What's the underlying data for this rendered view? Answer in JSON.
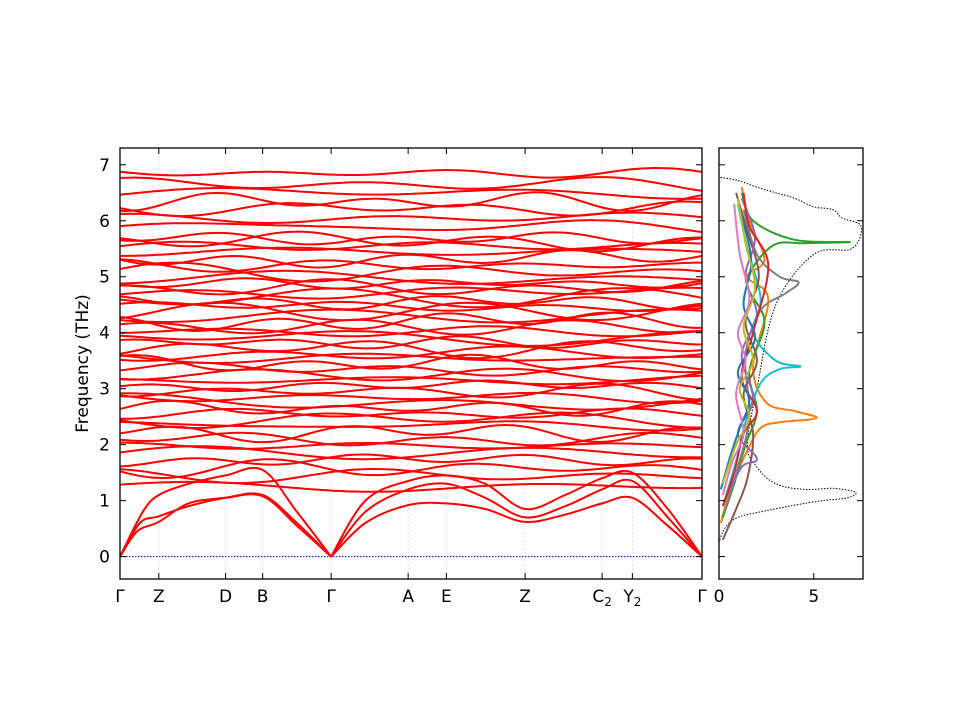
{
  "chart_data": [
    {
      "type": "line",
      "title": "",
      "xlabel": "",
      "ylabel": "Frequency (THz)",
      "ylim": [
        -0.4,
        7.3
      ],
      "yticks": [
        "0",
        "1",
        "2",
        "3",
        "4",
        "5",
        "6",
        "7"
      ],
      "ytick_values": [
        0,
        1,
        2,
        3,
        4,
        5,
        6,
        7
      ],
      "xlim": [
        0,
        10.2
      ],
      "high_symmetry_points": [
        {
          "label": "Γ",
          "sub": "",
          "x": 0
        },
        {
          "label": "Z",
          "sub": "",
          "x": 0.68
        },
        {
          "label": "D",
          "sub": "",
          "x": 1.85
        },
        {
          "label": "B",
          "sub": "",
          "x": 2.5
        },
        {
          "label": "Γ",
          "sub": "",
          "x": 3.7
        },
        {
          "label": "A",
          "sub": "",
          "x": 5.05
        },
        {
          "label": "E",
          "sub": "",
          "x": 5.72
        },
        {
          "label": "Z",
          "sub": "",
          "x": 7.1
        },
        {
          "label": "C",
          "sub": "2",
          "x": 8.45
        },
        {
          "label": "Y",
          "sub": "2",
          "x": 8.98
        },
        {
          "label": "Γ",
          "sub": "",
          "x": 10.2
        }
      ],
      "band_color": "#ff0000",
      "zero_line_color": "#0000ff",
      "acoustic_branches": [
        {
          "x": [
            0,
            0.3,
            0.68,
            1.2,
            1.85,
            2.5,
            3.1,
            3.7
          ],
          "y": [
            0,
            0.45,
            0.62,
            0.95,
            1.05,
            1.08,
            0.55,
            0
          ]
        },
        {
          "x": [
            0,
            0.35,
            0.68,
            1.2,
            1.85,
            2.5,
            3.1,
            3.7
          ],
          "y": [
            0,
            0.6,
            0.72,
            0.9,
            1.05,
            1.1,
            0.6,
            0
          ]
        },
        {
          "x": [
            0,
            0.4,
            0.68,
            1.2,
            1.85,
            2.5,
            3.1,
            3.7
          ],
          "y": [
            0,
            0.8,
            1.1,
            1.3,
            1.45,
            1.55,
            0.8,
            0
          ]
        },
        {
          "x": [
            3.7,
            4.3,
            5.05,
            5.72,
            6.4,
            7.1,
            7.8,
            8.45,
            8.98,
            9.6,
            10.2
          ],
          "y": [
            0,
            0.6,
            0.92,
            0.95,
            0.85,
            0.62,
            0.75,
            0.95,
            1.05,
            0.55,
            0
          ]
        },
        {
          "x": [
            3.7,
            4.3,
            5.05,
            5.72,
            6.4,
            7.1,
            7.8,
            8.45,
            8.98,
            9.6,
            10.2
          ],
          "y": [
            0,
            0.8,
            1.2,
            1.3,
            1.05,
            0.7,
            0.9,
            1.2,
            1.35,
            0.7,
            0
          ]
        },
        {
          "x": [
            3.7,
            4.3,
            5.05,
            5.72,
            6.4,
            7.1,
            7.8,
            8.45,
            8.98,
            9.6,
            10.2
          ],
          "y": [
            0,
            1.0,
            1.35,
            1.45,
            1.3,
            0.85,
            1.1,
            1.4,
            1.5,
            0.85,
            0
          ]
        }
      ],
      "optical_band_levels": [
        1.25,
        1.45,
        1.58,
        1.72,
        1.85,
        1.98,
        2.1,
        2.22,
        2.35,
        2.45,
        2.55,
        2.65,
        2.75,
        2.85,
        2.95,
        3.05,
        3.15,
        3.25,
        3.35,
        3.45,
        3.55,
        3.62,
        3.72,
        3.82,
        3.92,
        4.02,
        4.1,
        4.2,
        4.3,
        4.38,
        4.47,
        4.55,
        4.63,
        4.72,
        4.8,
        4.88,
        4.97,
        5.08,
        5.2,
        5.32,
        5.45,
        5.55,
        5.63,
        5.68,
        5.9,
        6.05,
        6.22,
        6.35,
        6.5,
        6.65,
        6.85
      ]
    },
    {
      "type": "line",
      "title": "",
      "xlabel": "",
      "ylabel": "",
      "xlim": [
        0,
        7.6
      ],
      "ylim": [
        -0.4,
        7.3
      ],
      "xticks": [
        "0",
        "5"
      ],
      "xtick_values": [
        0,
        5
      ],
      "series": [
        {
          "color": "#000000",
          "style": "dotted",
          "x": [
            0,
            0.3,
            1.0,
            2.5,
            4.0,
            5.5,
            6.8,
            7.2,
            6.0,
            4.5,
            3.0,
            2.0,
            1.5,
            2.0,
            3.0,
            5.0,
            7.0,
            7.5,
            6.5,
            6.0,
            5.0,
            4.0,
            3.0,
            2.0,
            1.0,
            0
          ],
          "y": [
            0.25,
            0.5,
            0.7,
            0.82,
            0.92,
            1.0,
            1.05,
            1.15,
            1.22,
            1.2,
            1.3,
            1.6,
            2.0,
            3.0,
            4.5,
            5.4,
            5.5,
            5.9,
            6.05,
            6.2,
            6.25,
            6.4,
            6.5,
            6.6,
            6.72,
            6.78
          ]
        },
        {
          "color": "#ff7f0e",
          "style": "solid",
          "x": [
            0.1,
            0.6,
            1.5,
            2.2,
            3.2,
            4.8,
            5.1,
            4.0,
            2.5,
            1.8,
            2.6,
            1.5,
            2.4,
            1.6,
            1.2
          ],
          "y": [
            0.6,
            1.2,
            1.9,
            2.3,
            2.4,
            2.45,
            2.5,
            2.6,
            2.75,
            3.4,
            4.6,
            5.0,
            5.3,
            6.0,
            6.6
          ]
        },
        {
          "color": "#2ca02c",
          "style": "solid",
          "x": [
            0.2,
            0.8,
            1.4,
            2.0,
            1.6,
            2.4,
            1.5,
            2.8,
            4.5,
            6.9,
            4.0,
            1.8,
            1.2
          ],
          "y": [
            0.7,
            1.3,
            2.0,
            2.6,
            3.3,
            4.2,
            4.9,
            5.55,
            5.6,
            5.62,
            5.66,
            6.0,
            6.5
          ]
        },
        {
          "color": "#7f7f7f",
          "style": "solid",
          "x": [
            0.3,
            1.0,
            1.6,
            1.4,
            2.2,
            3.5,
            4.2,
            3.2,
            2.0,
            1.3
          ],
          "y": [
            0.8,
            1.6,
            2.5,
            3.6,
            4.4,
            4.7,
            4.9,
            5.0,
            5.4,
            6.2
          ]
        },
        {
          "color": "#17becf",
          "style": "solid",
          "x": [
            0.2,
            0.9,
            1.4,
            2.2,
            3.2,
            4.3,
            3.0,
            1.8,
            2.2,
            1.5,
            1.0
          ],
          "y": [
            0.9,
            1.7,
            2.4,
            3.1,
            3.35,
            3.4,
            3.5,
            4.0,
            4.6,
            5.5,
            6.3
          ]
        },
        {
          "color": "#8c564b",
          "style": "solid",
          "x": [
            0.2,
            0.9,
            1.5,
            1.8,
            1.3,
            2.0,
            1.4,
            2.1,
            1.5,
            0.9
          ],
          "y": [
            0.3,
            0.85,
            1.4,
            2.2,
            2.9,
            3.5,
            4.2,
            5.0,
            5.8,
            6.5
          ]
        },
        {
          "color": "#9467bd",
          "style": "solid",
          "x": [
            0.3,
            1.2,
            2.0,
            1.0,
            1.8,
            1.2,
            2.0,
            1.4,
            1.9,
            1.2
          ],
          "y": [
            1.0,
            1.6,
            1.75,
            2.2,
            2.8,
            3.6,
            4.3,
            5.0,
            5.7,
            6.4
          ]
        },
        {
          "color": "#d62728",
          "style": "solid",
          "x": [
            0.2,
            0.8,
            1.3,
            2.0,
            1.2,
            1.8,
            2.6,
            1.6,
            1.3
          ],
          "y": [
            0.9,
            1.5,
            2.2,
            2.6,
            3.2,
            4.0,
            5.2,
            5.9,
            6.5
          ]
        },
        {
          "color": "#1f77b4",
          "style": "solid",
          "x": [
            0.1,
            0.6,
            1.1,
            1.6,
            1.0,
            1.9,
            1.3,
            1.7,
            1.1
          ],
          "y": [
            1.2,
            1.8,
            2.3,
            2.8,
            3.3,
            3.9,
            4.5,
            5.3,
            6.2
          ]
        },
        {
          "color": "#bcbd22",
          "style": "solid",
          "x": [
            0.2,
            0.9,
            1.6,
            1.1,
            1.8,
            1.3,
            1.9,
            1.4,
            1.0
          ],
          "y": [
            1.3,
            2.0,
            2.5,
            3.0,
            3.5,
            4.1,
            4.8,
            5.6,
            6.4
          ]
        },
        {
          "color": "#e377c2",
          "style": "solid",
          "x": [
            0.2,
            0.7,
            1.3,
            0.9,
            1.4,
            1.0,
            1.6,
            1.1,
            0.8
          ],
          "y": [
            1.1,
            1.7,
            2.2,
            2.9,
            3.5,
            4.0,
            4.6,
            5.4,
            6.3
          ]
        }
      ]
    }
  ]
}
